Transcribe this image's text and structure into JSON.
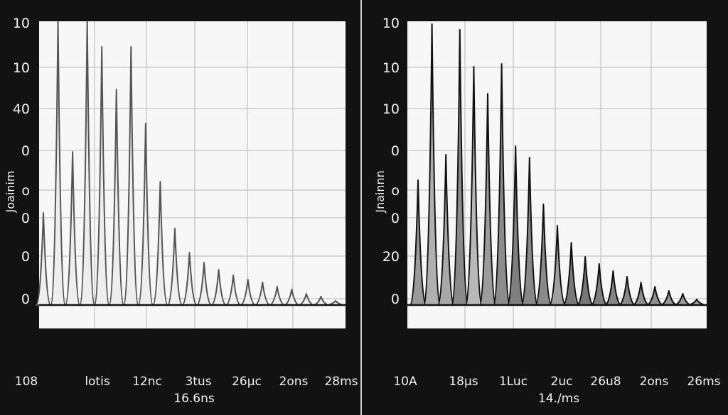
{
  "chart_data": [
    {
      "type": "area",
      "ylabel": "Joainim",
      "xlabel": "16.6ns",
      "y_tick_labels": [
        "10",
        "10",
        "40",
        "0",
        "o",
        "0",
        "0",
        "0"
      ],
      "x_tick_labels": [
        "108",
        "lotis",
        "12nc",
        "3tus",
        "26μc",
        "2ons",
        "28ms"
      ],
      "ylim": [
        0,
        100
      ],
      "grid": true,
      "peak_heights": [
        32.5,
        100,
        54,
        100,
        91,
        76,
        91,
        64,
        43.5,
        27,
        18.5,
        15,
        12.5,
        10.5,
        9,
        8,
        6.5,
        5.5,
        4,
        3,
        1.5
      ],
      "colors": {
        "fill": "#eeeeee",
        "stroke": "#555555"
      }
    },
    {
      "type": "area",
      "ylabel": "Jnainnn",
      "xlabel": "14./ms",
      "y_tick_labels": [
        "10",
        "10",
        "10",
        "0",
        "o",
        "0",
        "20",
        "0"
      ],
      "x_tick_labels": [
        "10A",
        "18μs",
        "1Luc",
        "2uc",
        "26u8",
        "2ons",
        "26ms"
      ],
      "ylim": [
        0,
        100
      ],
      "grid": true,
      "peak_heights": [
        44,
        99,
        53,
        97,
        84,
        74.5,
        85,
        56,
        52,
        35.5,
        28,
        22,
        17,
        14.5,
        12,
        10,
        8,
        6.5,
        5,
        4,
        2
      ],
      "colors": {
        "fill": [
          "#9a9a9a",
          "#b0b0b0",
          "#a8a8a8",
          "#8a8a8a",
          "#b8b8b8",
          "#9c9c9c",
          "#8c8c8c",
          "#7e7e7e",
          "#888888",
          "#8a8a8a",
          "#a0a0a0",
          "#7a7a7a",
          "#777777",
          "#7f7f7f",
          "#858585",
          "#8a8a8a",
          "#8e8e8e",
          "#909090",
          "#959595",
          "#9a9a9a",
          "#a5a5a5"
        ],
        "stroke": "#111111"
      }
    }
  ]
}
